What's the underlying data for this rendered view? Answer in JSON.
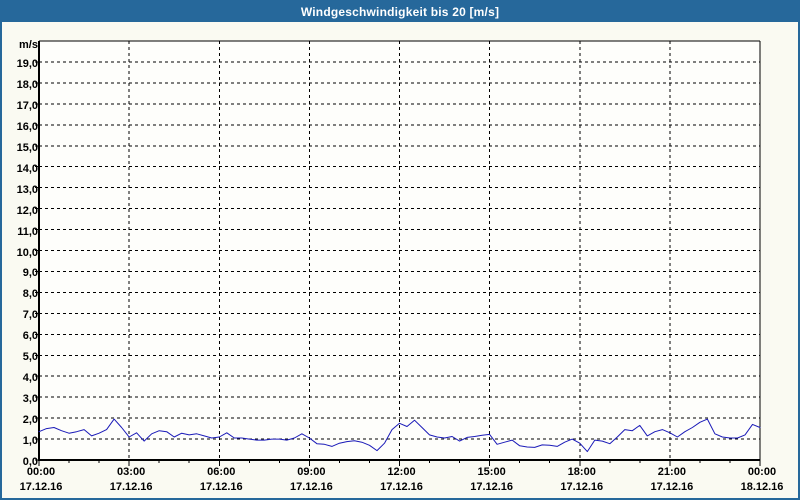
{
  "window": {
    "title": "Windgeschwindigkeit bis 20 [m/s]"
  },
  "colors": {
    "titlebar": "#26689b",
    "frame_border": "#26689b",
    "background": "#fafaf2",
    "plot_background": "#fefefb",
    "grid": "#000000",
    "axis": "#000000",
    "line": "#1a1ab8",
    "label_text": "#000000",
    "title_text": "#ffffff"
  },
  "chart_data": {
    "type": "line",
    "title": "Windgeschwindigkeit bis 20 [m/s]",
    "ylabel": "m/s",
    "xlabel": "",
    "ylim": [
      0,
      20
    ],
    "y_tick_step": 1.0,
    "grid": "dashed",
    "legend": "none",
    "y_tick_labels": [
      "19,0",
      "18,0",
      "17,0",
      "16,0",
      "15,0",
      "14,0",
      "13,0",
      "12,0",
      "11,0",
      "10,0",
      "9,0",
      "8,0",
      "7,0",
      "6,0",
      "5,0",
      "4,0",
      "3,0",
      "2,0",
      "1,0",
      "0,0"
    ],
    "x_range_hours": [
      0,
      24
    ],
    "x_major_tick_hours": 3,
    "x_minor_tick_hours": 1,
    "x_ticks": [
      {
        "time": "00:00",
        "date": "17.12.16"
      },
      {
        "time": "03:00",
        "date": "17.12.16"
      },
      {
        "time": "06:00",
        "date": "17.12.16"
      },
      {
        "time": "09:00",
        "date": "17.12.16"
      },
      {
        "time": "12:00",
        "date": "17.12.16"
      },
      {
        "time": "15:00",
        "date": "17.12.16"
      },
      {
        "time": "18:00",
        "date": "17.12.16"
      },
      {
        "time": "21:00",
        "date": "17.12.16"
      },
      {
        "time": "00:00",
        "date": "18.12.16"
      }
    ],
    "series": [
      {
        "name": "Windgeschwindigkeit",
        "sample_interval_hours": 0.25,
        "start_hour": 0,
        "values": [
          1.35,
          1.5,
          1.55,
          1.4,
          1.28,
          1.35,
          1.45,
          1.15,
          1.28,
          1.45,
          1.95,
          1.55,
          1.1,
          1.3,
          0.9,
          1.25,
          1.4,
          1.35,
          1.1,
          1.28,
          1.2,
          1.25,
          1.15,
          1.05,
          1.1,
          1.3,
          1.05,
          1.05,
          1.0,
          0.95,
          0.95,
          1.0,
          1.0,
          0.95,
          1.05,
          1.25,
          1.05,
          0.78,
          0.75,
          0.65,
          0.8,
          0.88,
          0.92,
          0.85,
          0.7,
          0.45,
          0.8,
          1.45,
          1.75,
          1.6,
          1.9,
          1.55,
          1.2,
          1.1,
          1.05,
          1.12,
          0.9,
          1.08,
          1.12,
          1.18,
          1.22,
          0.75,
          0.85,
          0.95,
          0.68,
          0.62,
          0.6,
          0.72,
          0.7,
          0.65,
          0.85,
          1.0,
          0.8,
          0.4,
          0.95,
          0.9,
          0.78,
          1.1,
          1.45,
          1.4,
          1.65,
          1.15,
          1.35,
          1.45,
          1.3,
          1.1,
          1.35,
          1.55,
          1.8,
          1.95,
          1.25,
          1.1,
          1.05,
          1.05,
          1.2,
          1.7,
          1.55
        ]
      }
    ]
  }
}
